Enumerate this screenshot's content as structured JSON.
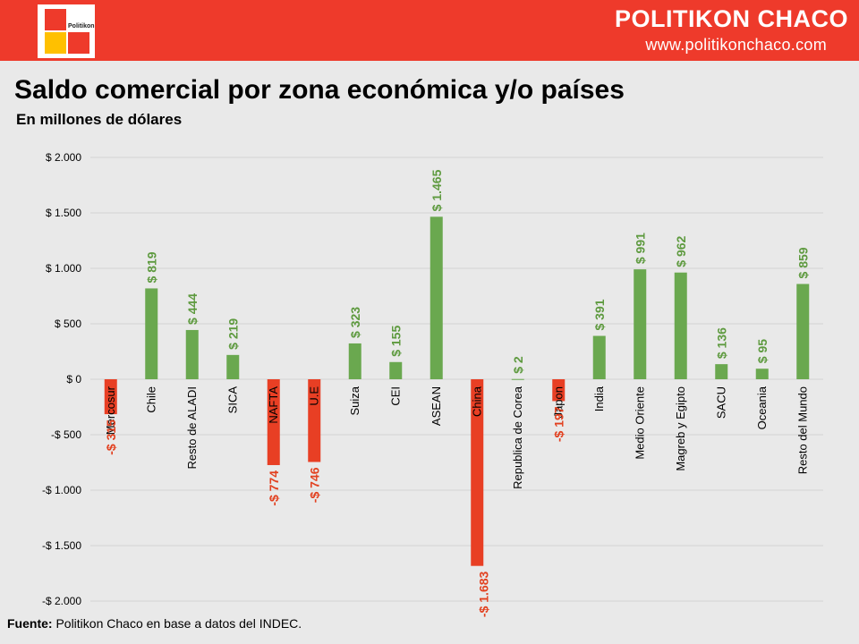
{
  "header": {
    "logo_text": "Politikon",
    "brand_name": "POLITIKON CHACO",
    "brand_url": "www.politikonchaco.com",
    "colors": {
      "bar": "#ee3a2b",
      "logo_red": "#ee3a2b",
      "logo_yellow": "#ffc000"
    }
  },
  "title": "Saldo comercial por zona económica y/o países",
  "subtitle": "En millones de dólares",
  "source": {
    "label": "Fuente:",
    "text": " Politikon Chaco en base a datos del INDEC."
  },
  "chart_data": {
    "type": "bar",
    "title": "Saldo comercial por zona económica y/o países",
    "subtitle": "En millones de dólares",
    "categories": [
      "Mercosur",
      "Chile",
      "Resto de ALADI",
      "SICA",
      "NAFTA",
      "U.E",
      "Suiza",
      "CEI",
      "ASEAN",
      "China",
      "Republica de Corea",
      "Japon",
      "India",
      "Medio Oriente",
      "Magreb y Egipto",
      "SACU",
      "Oceania",
      "Resto del Mundo"
    ],
    "values": [
      -315,
      819,
      444,
      219,
      -774,
      -746,
      323,
      155,
      1465,
      -1683,
      2,
      -197,
      391,
      991,
      962,
      136,
      95,
      859
    ],
    "value_labels": [
      "-$ 315",
      "$ 819",
      "$ 444",
      "$ 219",
      "-$ 774",
      "-$ 746",
      "$ 323",
      "$ 155",
      "$ 1.465",
      "-$ 1.683",
      "$ 2",
      "-$ 197",
      "$ 391",
      "$ 991",
      "$ 962",
      "$ 136",
      "$ 95",
      "$ 859"
    ],
    "ylim": [
      -2000,
      2000
    ],
    "yticks": [
      2000,
      1500,
      1000,
      500,
      0,
      -500,
      -1000,
      -1500,
      -2000
    ],
    "ytick_labels": [
      "$ 2.000",
      "$ 1.500",
      "$ 1.000",
      "$ 500",
      "$ 0",
      "-$ 500",
      "-$ 1.000",
      "-$ 1.500",
      "-$ 2.000"
    ],
    "grid": true,
    "colors": {
      "positive": "#6aa84f",
      "negative": "#e83f24",
      "positive_label": "#5e9a3f",
      "negative_label": "#e2401f",
      "grid": "#d3d3d3"
    }
  }
}
